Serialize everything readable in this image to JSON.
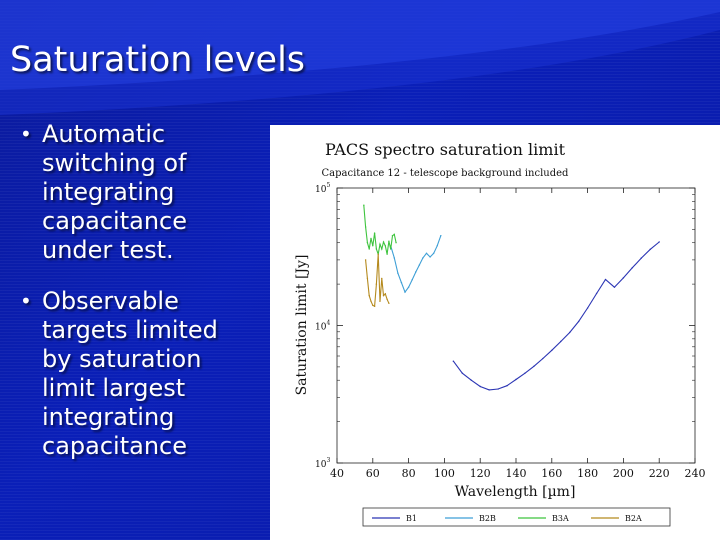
{
  "slide": {
    "title": "Saturation levels",
    "bullets": [
      {
        "text": "Automatic\nswitching of\nintegrating\ncapacitance\nunder test."
      },
      {
        "text": "Observable\ntargets limited\nby saturation\nlimit largest\nintegrating\ncapacitance"
      }
    ]
  },
  "colors": {
    "background": "#0a1aa0",
    "title_text": "#ffffff",
    "bullet_text": "#ffffff"
  },
  "chart_data": {
    "type": "line",
    "title": "PACS spectro saturation limit",
    "subtitle": "Capacitance 12 - telescope background included",
    "xlabel": "Wavelength [µm]",
    "ylabel": "Saturation limit [Jy]",
    "xlim": [
      40,
      240
    ],
    "ylim": [
      1000,
      100000
    ],
    "yscale": "log",
    "x_ticks": [
      "40",
      "60",
      "80",
      "100",
      "120",
      "140",
      "160",
      "180",
      "200",
      "220",
      "240"
    ],
    "y_ticks": [
      {
        "base": "10",
        "exp": "5",
        "value": 100000
      },
      {
        "base": "10",
        "exp": "4",
        "value": 10000
      },
      {
        "base": "10",
        "exp": "3",
        "value": 1000
      }
    ],
    "grid": false,
    "legend_position": "bottom",
    "series": [
      {
        "name": "B1",
        "color": "#2b35b4",
        "x": [
          105,
          110,
          115,
          120,
          125,
          130,
          135,
          140,
          145,
          150,
          155,
          160,
          165,
          170,
          175,
          180,
          185,
          190,
          195,
          200,
          205,
          210,
          215,
          220
        ],
        "y": [
          5500,
          4500,
          4000,
          3600,
          3400,
          3450,
          3650,
          4050,
          4500,
          5050,
          5750,
          6600,
          7650,
          8900,
          10700,
          13400,
          17100,
          21600,
          19000,
          22200,
          26300,
          30900,
          35800,
          40500
        ]
      },
      {
        "name": "B2B",
        "color": "#3e9fd6",
        "x": [
          70,
          72,
          74,
          76,
          78,
          80,
          82,
          84,
          86,
          88,
          90,
          92,
          94,
          96,
          98
        ],
        "y": [
          38000,
          31000,
          24000,
          20500,
          17500,
          19000,
          21500,
          24500,
          27500,
          31000,
          33500,
          31500,
          33500,
          38000,
          45000
        ]
      },
      {
        "name": "B3A",
        "color": "#3ec43e",
        "x": [
          55,
          56,
          57,
          58,
          59,
          60,
          61,
          62,
          63,
          64,
          65,
          66,
          67,
          68,
          69,
          70,
          71,
          72,
          73
        ],
        "y": [
          75000,
          52000,
          40000,
          36000,
          43000,
          38000,
          47000,
          36000,
          33000,
          39000,
          36000,
          40500,
          38000,
          33000,
          41000,
          36000,
          45000,
          46000,
          40000
        ]
      },
      {
        "name": "B2A",
        "color": "#b58a1e",
        "x": [
          56,
          57,
          58,
          59,
          60,
          61,
          62,
          63,
          64,
          65,
          66,
          67,
          68,
          69
        ],
        "y": [
          30000,
          22000,
          16500,
          15000,
          14000,
          13800,
          20000,
          33000,
          15000,
          22000,
          16500,
          17000,
          15500,
          14500
        ]
      }
    ]
  }
}
